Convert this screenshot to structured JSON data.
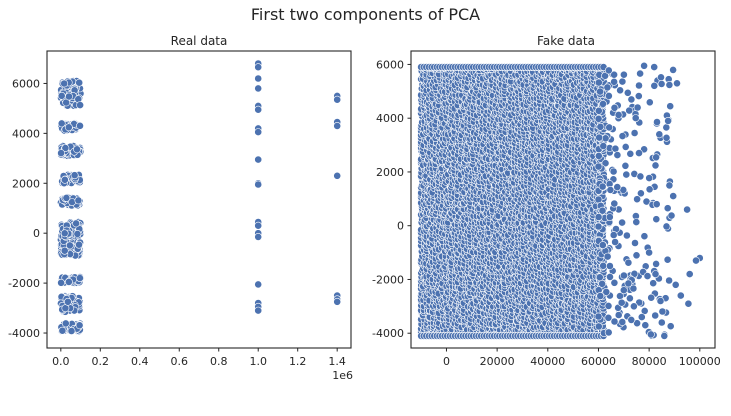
{
  "figure_title": "First two components of PCA",
  "colors": {
    "points": "#4c72b0",
    "point_edge": "#ffffff",
    "axes": "#262626"
  },
  "chart_data": [
    {
      "type": "scatter",
      "title": "Real data",
      "xlabel": "",
      "ylabel": "",
      "xlim": [
        -70000,
        1470000
      ],
      "ylim": [
        -4600,
        7300
      ],
      "x_ticks": [
        0,
        200000,
        400000,
        600000,
        800000,
        1000000,
        1200000,
        1400000
      ],
      "x_tick_labels": [
        "0.0",
        "0.2",
        "0.4",
        "0.6",
        "0.8",
        "1.0",
        "1.2",
        "1.4"
      ],
      "x_offset_label": "1e6",
      "y_ticks": [
        -4000,
        -2000,
        0,
        2000,
        4000,
        6000
      ],
      "y_tick_labels": [
        "-4000",
        "-2000",
        "0",
        "2000",
        "4000",
        "6000"
      ],
      "grid": false,
      "clusters": [
        {
          "x_range": [
            0,
            100000
          ],
          "y_bands": [
            [
              5100,
              6100
            ],
            [
              4100,
              4400
            ],
            [
              3100,
              3500
            ],
            [
              2000,
              2350
            ],
            [
              1100,
              1450
            ],
            [
              -900,
              450
            ],
            [
              -2000,
              -1750
            ],
            [
              -3150,
              -2500
            ],
            [
              -3950,
              -3600
            ]
          ]
        }
      ],
      "points": [
        [
          1000000,
          6800
        ],
        [
          1000000,
          6650
        ],
        [
          1000000,
          6200
        ],
        [
          1000000,
          5800
        ],
        [
          1000000,
          5100
        ],
        [
          1000000,
          4950
        ],
        [
          1000000,
          4200
        ],
        [
          1000000,
          4050
        ],
        [
          1000000,
          2950
        ],
        [
          1000000,
          2000
        ],
        [
          1000000,
          1950
        ],
        [
          1000000,
          450
        ],
        [
          1000000,
          300
        ],
        [
          1000000,
          0
        ],
        [
          1000000,
          -150
        ],
        [
          1000000,
          -2050
        ],
        [
          1000000,
          -2800
        ],
        [
          1000000,
          -2950
        ],
        [
          1000000,
          -3100
        ],
        [
          1400000,
          5500
        ],
        [
          1400000,
          5350
        ],
        [
          1400000,
          4450
        ],
        [
          1400000,
          4300
        ],
        [
          1400000,
          2300
        ],
        [
          1400000,
          -2500
        ],
        [
          1400000,
          -2650
        ],
        [
          1400000,
          -2750
        ]
      ]
    },
    {
      "type": "scatter",
      "title": "Fake data",
      "xlabel": "",
      "ylabel": "",
      "xlim": [
        -14000,
        106000
      ],
      "ylim": [
        -4550,
        6500
      ],
      "x_ticks": [
        0,
        20000,
        40000,
        60000,
        80000,
        100000
      ],
      "x_tick_labels": [
        "0",
        "20000",
        "40000",
        "60000",
        "80000",
        "100000"
      ],
      "y_ticks": [
        -4000,
        -2000,
        0,
        2000,
        4000,
        6000
      ],
      "y_tick_labels": [
        "-4000",
        "-2000",
        "0",
        "2000",
        "4000",
        "6000"
      ],
      "grid": false,
      "dense_region": {
        "x_range": [
          -10000,
          62000
        ],
        "y_range": [
          -4100,
          5900
        ]
      },
      "sparse_region": {
        "x_range": [
          60000,
          101000
        ],
        "y_range": [
          -4100,
          5900
        ]
      },
      "points": [
        [
          95000,
          600
        ],
        [
          100000,
          -1200
        ],
        [
          98500,
          -1300
        ],
        [
          96000,
          -1800
        ],
        [
          91000,
          5300
        ],
        [
          92500,
          -2600
        ],
        [
          95500,
          -2900
        ],
        [
          87000,
          4100
        ],
        [
          87500,
          3900
        ],
        [
          88000,
          1500
        ],
        [
          89500,
          1100
        ],
        [
          90500,
          -2200
        ],
        [
          83000,
          800
        ],
        [
          85000,
          -3600
        ],
        [
          86000,
          -4100
        ],
        [
          78000,
          5950
        ],
        [
          82000,
          5900
        ],
        [
          84000,
          3400
        ],
        [
          80000,
          -1000
        ],
        [
          82500,
          -1800
        ],
        [
          84500,
          -2800
        ],
        [
          78500,
          -3700
        ],
        [
          76000,
          2700
        ],
        [
          75000,
          -1100
        ],
        [
          73000,
          4700
        ],
        [
          74000,
          -3000
        ],
        [
          71000,
          1900
        ],
        [
          70000,
          -2400
        ]
      ]
    }
  ]
}
